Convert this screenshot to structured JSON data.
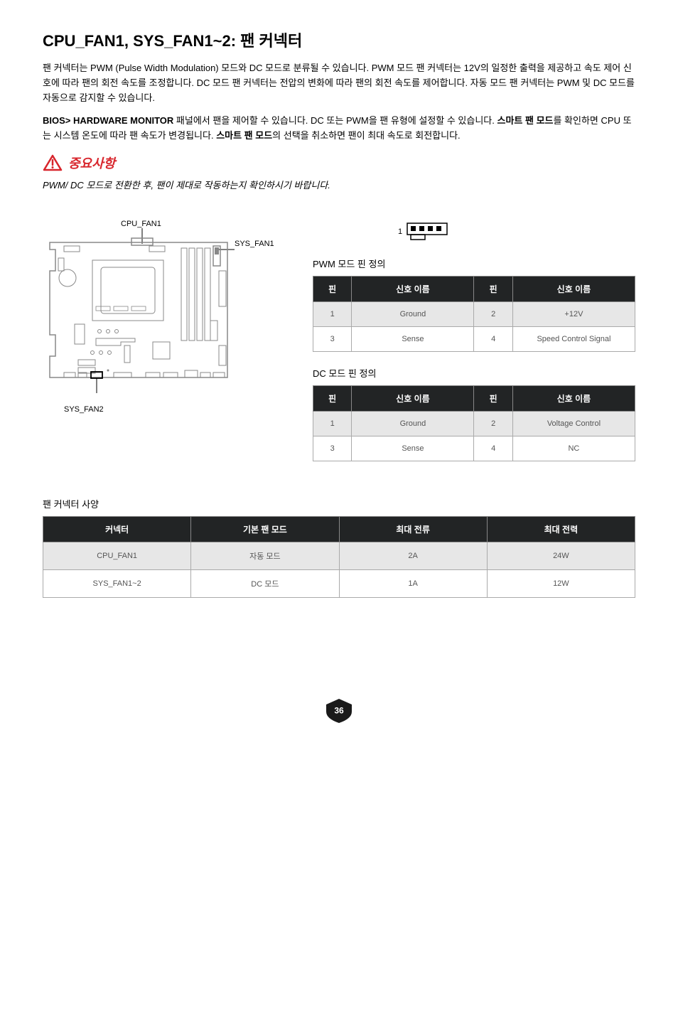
{
  "title": "CPU_FAN1, SYS_FAN1~2: 팬 커넥터",
  "para1": "팬 커넥터는 PWM (Pulse Width Modulation) 모드와 DC 모드로 분류될 수 있습니다. PWM 모드 팬 커넥터는 12V의 일정한 출력을 제공하고 속도 제어 신호에 따라 팬의 회전 속도를 조정합니다. DC 모드 팬 커넥터는 전압의 변화에 따라 팬의 회전 속도를 제어합니다. 자동 모드 팬 커넥터는  PWM 및 DC 모드를 자동으로 감지할 수 있습니다.",
  "para2_bold1": "BIOS> HARDWARE MONITOR",
  "para2_text1": " 패널에서 팬을 제어할 수 있습니다. DC 또는 PWM을 팬 유형에 설정할 수 있습니다. ",
  "para2_bold2": "스마트 팬 모드",
  "para2_text2": "를 확인하면 CPU 또는 시스템 온도에 따라 팬 속도가 변경됩니다. ",
  "para2_bold3": "스마트 팬 모드",
  "para2_text3": "의 선택을 취소하면 팬이 최대 속도로 회전합니다.",
  "important_label": "중요사항",
  "important_text": "PWM/ DC 모드로 전환한 후, 팬이 제대로 작동하는지 확인하시기 바랍니다.",
  "diagram": {
    "cpu_fan1": "CPU_FAN1",
    "sys_fan1": "SYS_FAN1",
    "sys_fan2": "SYS_FAN2"
  },
  "pin_one": "1",
  "pwm_header": "PWM 모드 핀 정의",
  "dc_header": "DC 모드 핀 정의",
  "table_headers": {
    "pin": "핀",
    "signal": "신호 이름"
  },
  "pwm_table": [
    {
      "p1": "1",
      "s1": "Ground",
      "p2": "2",
      "s2": "+12V"
    },
    {
      "p1": "3",
      "s1": "Sense",
      "p2": "4",
      "s2": "Speed Control Signal"
    }
  ],
  "dc_table": [
    {
      "p1": "1",
      "s1": "Ground",
      "p2": "2",
      "s2": "Voltage Control"
    },
    {
      "p1": "3",
      "s1": "Sense",
      "p2": "4",
      "s2": "NC"
    }
  ],
  "spec_header": "팬 커넥터 사양",
  "spec_table_headers": {
    "connector": "커넥터",
    "default_mode": "기본 팬 모드",
    "max_current": "최대 전류",
    "max_power": "최대 전력"
  },
  "spec_table": [
    {
      "conn": "CPU_FAN1",
      "mode": "자동 모드",
      "current": "2A",
      "power": "24W"
    },
    {
      "conn": "SYS_FAN1~2",
      "mode": "DC 모드",
      "current": "1A",
      "power": "12W"
    }
  ],
  "page_number": "36",
  "colors": {
    "warning_red": "#d8252c",
    "table_header_bg": "#222425",
    "badge_fill": "#1a1a1a"
  }
}
